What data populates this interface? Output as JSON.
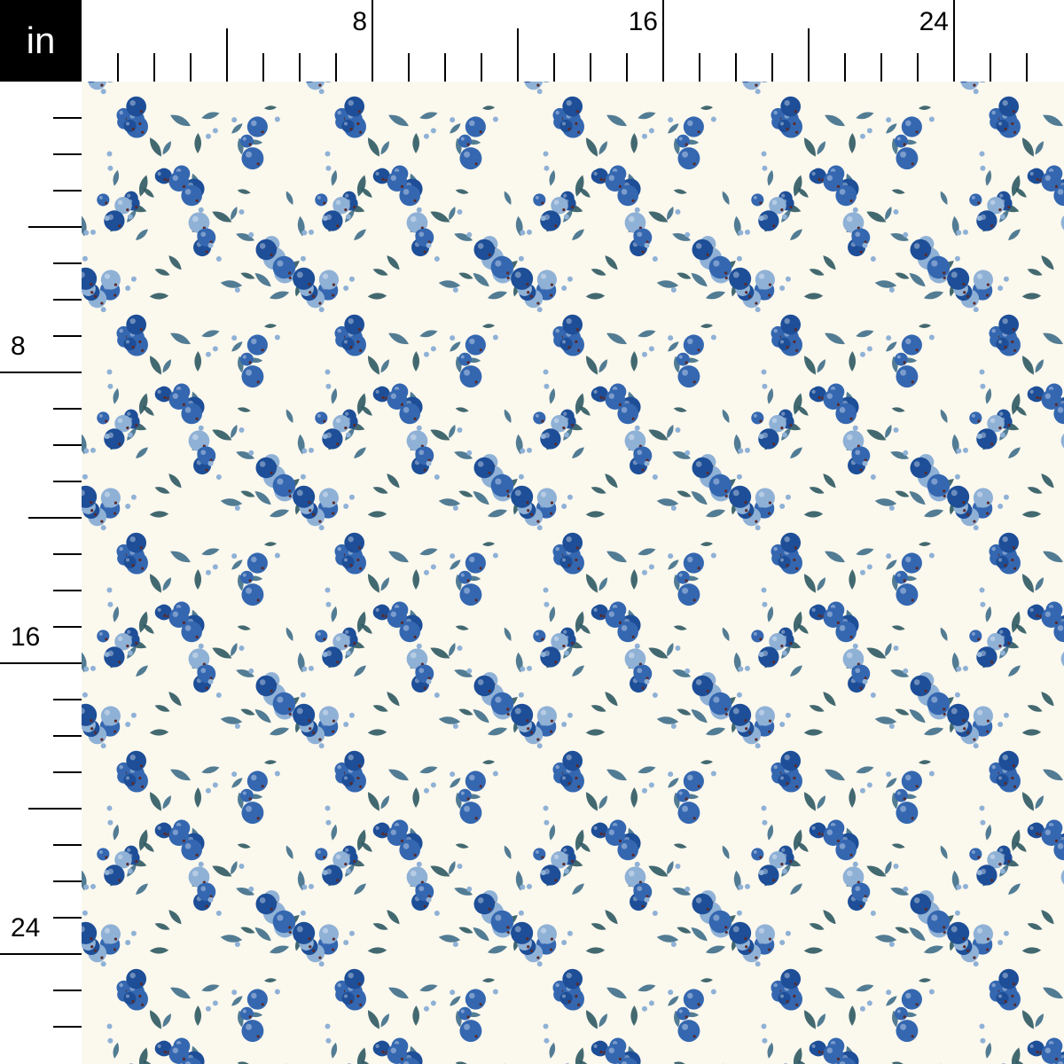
{
  "ruler": {
    "unit_label": "in",
    "top_labels": [
      "8",
      "16",
      "24"
    ],
    "left_labels": [
      "8",
      "16",
      "24"
    ]
  },
  "fabric": {
    "motif": "blueberries and leaves",
    "colors": {
      "background": "#fbf8ee",
      "berry_dark": "#1d4e97",
      "berry_mid": "#3467b0",
      "berry_light": "#8fb1d6",
      "leaf": "#3f6f8a",
      "leaf_dark": "#2f5a63",
      "calyx": "#5a2a2a"
    }
  }
}
